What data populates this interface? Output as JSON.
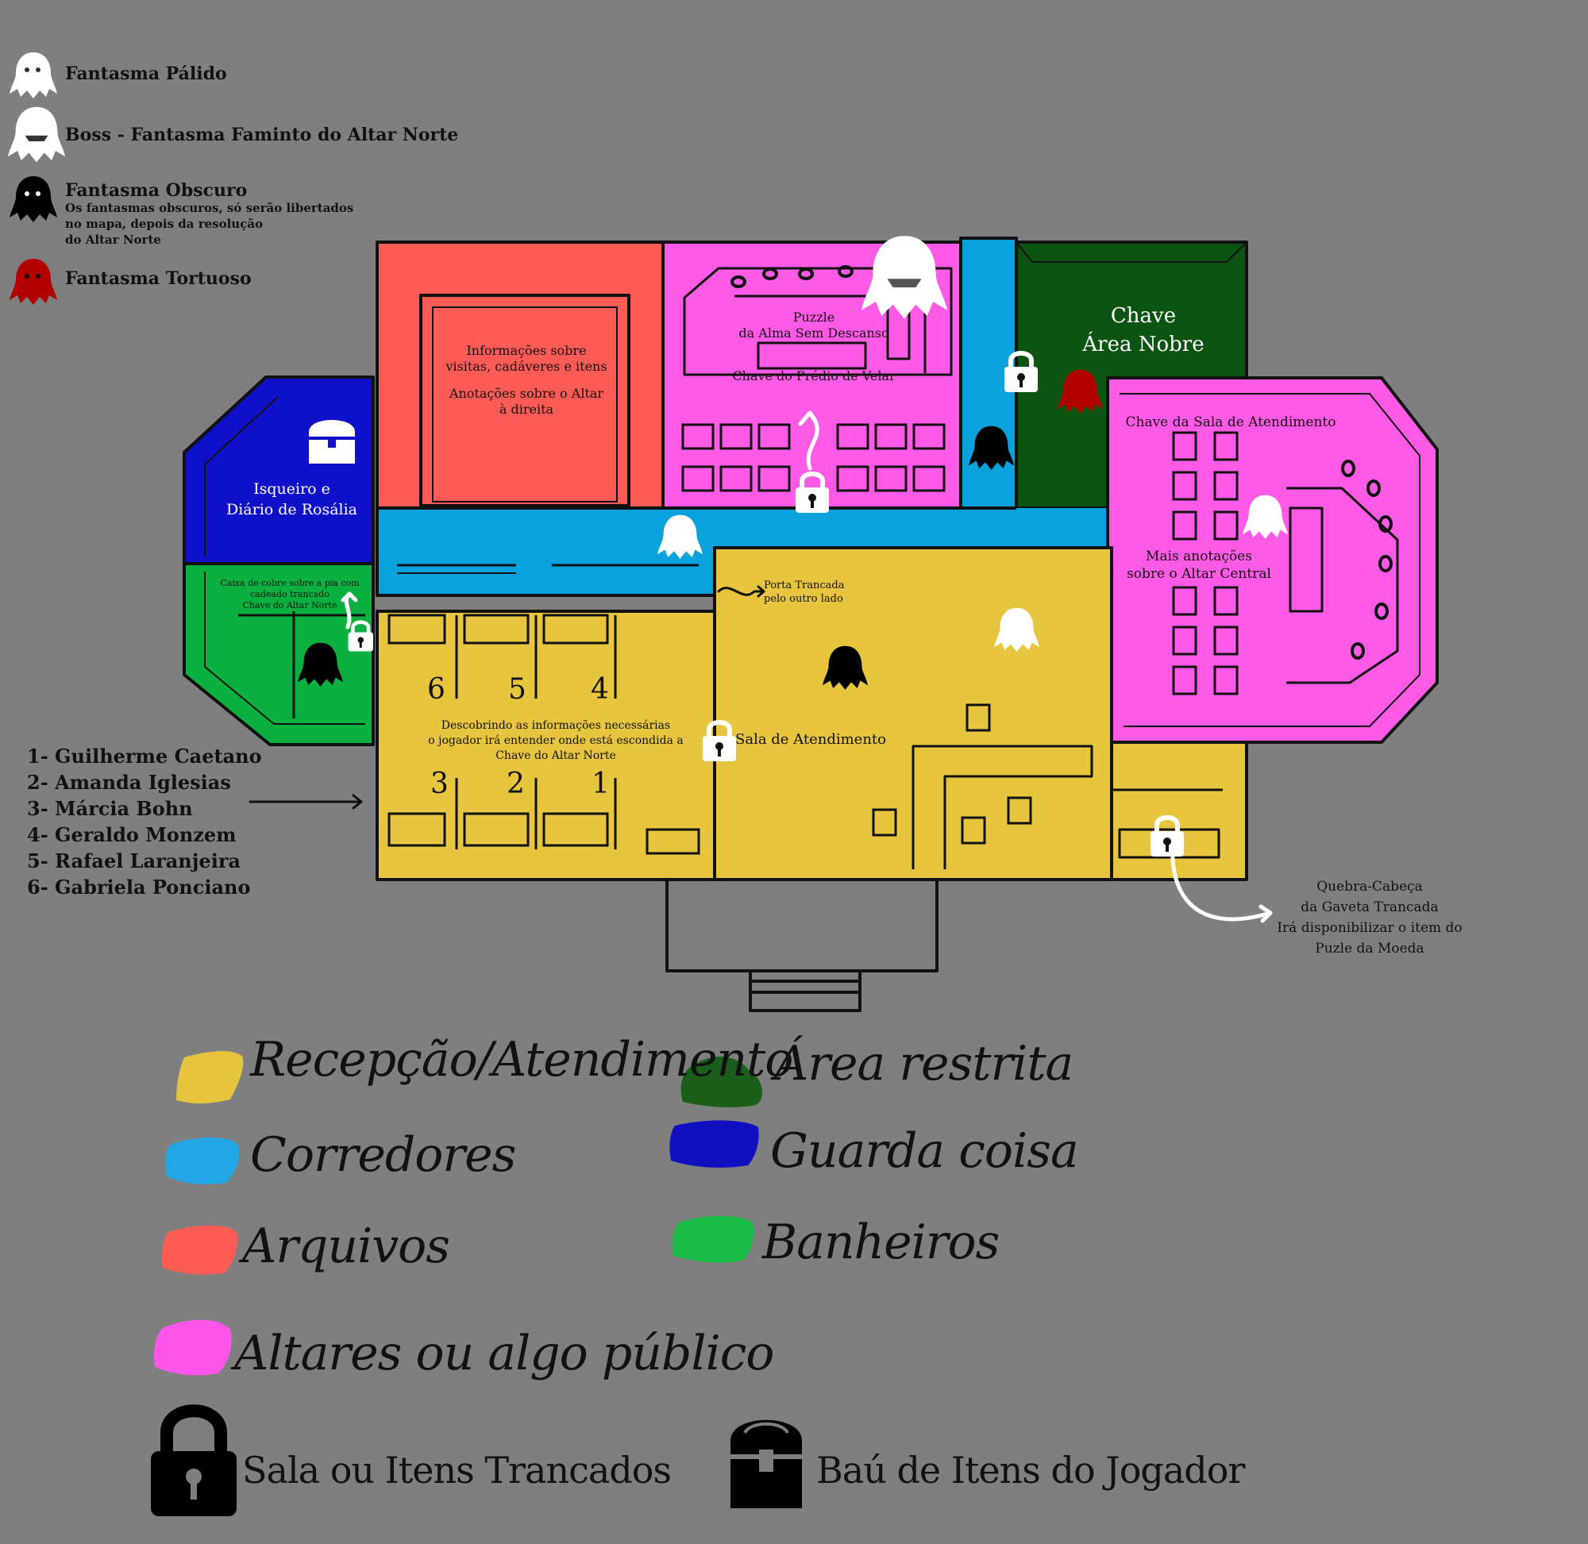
{
  "ghost_legend": [
    {
      "icon": "pale-ghost-icon",
      "color": "#ffffff",
      "label": "Fantasma Pálido"
    },
    {
      "icon": "boss-ghost-icon",
      "color": "#ffffff",
      "label": "Boss - Fantasma Faminto do Altar Norte"
    },
    {
      "icon": "dark-ghost-icon",
      "color": "#000000",
      "label": "Fantasma Obscuro",
      "note": [
        "Os fantasmas obscuros, só serão libertados",
        "no mapa, depois da resolução",
        "do Altar Norte"
      ]
    },
    {
      "icon": "tortured-ghost-icon",
      "color": "#b30000",
      "label": "Fantasma Tortuoso"
    }
  ],
  "rooms": {
    "archives": {
      "line1": "Informações sobre",
      "line2": "visitas, cadáveres e itens",
      "line3": "Anotações sobre o Altar",
      "line4": "à direita"
    },
    "north_altar": {
      "line1": "Puzzle",
      "line2": "da Alma Sem Descanso",
      "line3": "Chave do Prédio de Velar"
    },
    "restricted": {
      "line1": "Chave",
      "line2": "Área Nobre"
    },
    "storage": {
      "line1": "Isqueiro e",
      "line2": "Diário de Rosália"
    },
    "bathroom": {
      "line1": "Caixa de cobre sobre a pia com",
      "line2": "cadeado trancado",
      "line3": "Chave do Altar Norte"
    },
    "reception": {
      "door_line1": "Porta Trancada",
      "door_line2": "pelo outro lado",
      "room_name": "Sala de Atendimento"
    },
    "offices": {
      "line1": "Descobrindo as informações necessárias",
      "line2": "o jogador irá entender onde está escondida a",
      "line3": "Chave do Altar Norte"
    },
    "central_altar": {
      "line1": "Chave da Sala de Atendimento",
      "line2": "Mais anotações",
      "line3": "sobre o Altar Central"
    },
    "drawer_puzzle": {
      "line1": "Quebra-Cabeça",
      "line2": "da Gaveta Trancada",
      "line3": "Irá disponibilizar o item do",
      "line4": "Puzle da Moeda"
    }
  },
  "desk_numbers": [
    "6",
    "5",
    "4",
    "3",
    "2",
    "1"
  ],
  "roster": [
    "1- Guilherme Caetano",
    "2- Amanda Iglesias",
    "3- Márcia Bohn",
    "4- Geraldo Monzem",
    "5- Rafael Laranjeira",
    "6- Gabriela Ponciano"
  ],
  "colors": {
    "reception": "#e8c53e",
    "corridors": "#0aa2dd",
    "archives": "#fe5b56",
    "altars": "#ff5ae6",
    "restricted": "#0b5412",
    "storage": "#0f10c8",
    "bathrooms": "#0bb140",
    "tortured": "#b30000"
  },
  "legend": [
    {
      "color": "#e8c53e",
      "label": "Recepção/Atendimento"
    },
    {
      "color": "#1b5e1b",
      "label": "Área restrita"
    },
    {
      "color": "#23a6e6",
      "label": "Corredores"
    },
    {
      "color": "#1010c0",
      "label": "Guarda coisa"
    },
    {
      "color": "#ff5c56",
      "label": "Arquivos"
    },
    {
      "color": "#1bbd48",
      "label": "Banheiros"
    },
    {
      "color": "#ff55e8",
      "label": "Altares ou algo público"
    }
  ],
  "icon_legend": [
    {
      "icon": "lock-icon",
      "label": "Sala ou Itens Trancados"
    },
    {
      "icon": "chest-icon",
      "label": "Baú de Itens do Jogador"
    }
  ]
}
